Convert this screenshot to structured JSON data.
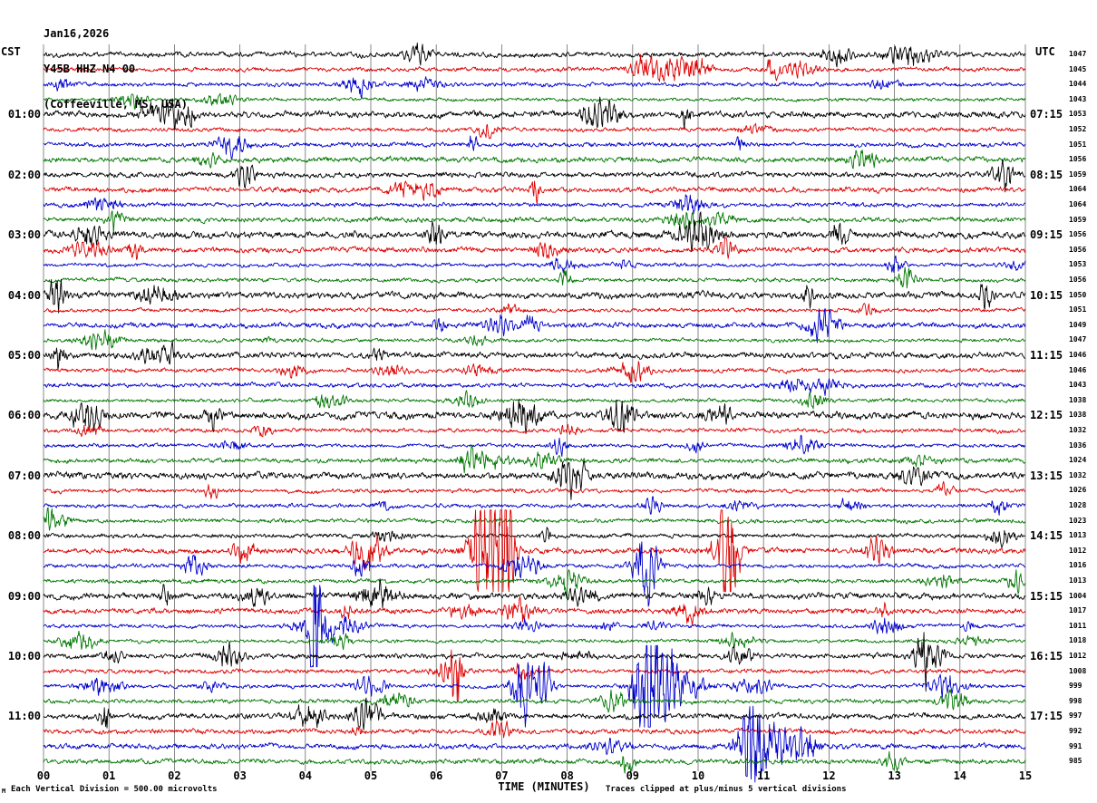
{
  "title": {
    "date": "Jan16,2026",
    "station": "Y45B HHZ N4 00",
    "location": "(Coffeeville, MS, USA)"
  },
  "footer": {
    "scale_note": "Each Vertical Division =  500.00 microvolts",
    "clip_note": "Traces clipped at plus/minus 5 vertical divisions",
    "corner_mark": "M"
  },
  "chart_data": {
    "type": "line",
    "variant": "helicorder-seismogram",
    "station": "Y45B HHZ N4 00",
    "location": "Coffeeville, MS, USA",
    "date": "Jan16,2026",
    "x_axis": {
      "label": "TIME (MINUTES)",
      "ticks": [
        "00",
        "01",
        "02",
        "03",
        "04",
        "05",
        "06",
        "07",
        "08",
        "09",
        "10",
        "11",
        "12",
        "13",
        "14",
        "15"
      ],
      "range_minutes": [
        0,
        15
      ],
      "grid": true
    },
    "left_axis": {
      "header": "CST",
      "labels": [
        {
          "row": 4,
          "text": "01:00"
        },
        {
          "row": 8,
          "text": "02:00"
        },
        {
          "row": 12,
          "text": "03:00"
        },
        {
          "row": 16,
          "text": "04:00"
        },
        {
          "row": 20,
          "text": "05:00"
        },
        {
          "row": 24,
          "text": "06:00"
        },
        {
          "row": 28,
          "text": "07:00"
        },
        {
          "row": 32,
          "text": "08:00"
        },
        {
          "row": 36,
          "text": "09:00"
        },
        {
          "row": 40,
          "text": "10:00"
        },
        {
          "row": 44,
          "text": "11:00"
        }
      ]
    },
    "right_axis": {
      "header": "UTC",
      "labels": [
        {
          "row": 4,
          "text": "07:15"
        },
        {
          "row": 8,
          "text": "08:15"
        },
        {
          "row": 12,
          "text": "09:15"
        },
        {
          "row": 16,
          "text": "10:15"
        },
        {
          "row": 20,
          "text": "11:15"
        },
        {
          "row": 24,
          "text": "12:15"
        },
        {
          "row": 28,
          "text": "13:15"
        },
        {
          "row": 32,
          "text": "14:15"
        },
        {
          "row": 36,
          "text": "15:15"
        },
        {
          "row": 40,
          "text": "16:15"
        },
        {
          "row": 44,
          "text": "17:15"
        }
      ]
    },
    "traces": {
      "count": 48,
      "minutes_per_trace": 15,
      "color_cycle": [
        "#000000",
        "#dd0000",
        "#0000cc",
        "#007700"
      ],
      "right_values": [
        1047,
        1045,
        1044,
        1043,
        1053,
        1052,
        1051,
        1056,
        1059,
        1064,
        1064,
        1059,
        1056,
        1056,
        1053,
        1056,
        1050,
        1051,
        1049,
        1047,
        1046,
        1046,
        1043,
        1038,
        1038,
        1032,
        1036,
        1024,
        1032,
        1026,
        1028,
        1023,
        1013,
        1012,
        1016,
        1013,
        1004,
        1017,
        1011,
        1018,
        1012,
        1008,
        999,
        998,
        997,
        992,
        991,
        985
      ]
    },
    "events": [
      {
        "row": 0,
        "m": 13.2,
        "amp": 10,
        "sigma": 0.25
      },
      {
        "row": 33,
        "m": 6.75,
        "amp": 55,
        "sigma": 0.18
      },
      {
        "row": 33,
        "m": 7.05,
        "amp": 95,
        "sigma": 0.08
      },
      {
        "row": 33,
        "m": 10.45,
        "amp": 70,
        "sigma": 0.12
      },
      {
        "row": 34,
        "m": 9.2,
        "amp": 40,
        "sigma": 0.12
      },
      {
        "row": 38,
        "m": 4.15,
        "amp": 70,
        "sigma": 0.06
      },
      {
        "row": 38,
        "m": 4.35,
        "amp": 14,
        "sigma": 0.3
      },
      {
        "row": 40,
        "m": 13.5,
        "amp": 30,
        "sigma": 0.14
      },
      {
        "row": 41,
        "m": 6.3,
        "amp": 55,
        "sigma": 0.05
      },
      {
        "row": 42,
        "m": 7.3,
        "amp": 45,
        "sigma": 0.1
      },
      {
        "row": 42,
        "m": 7.62,
        "amp": 25,
        "sigma": 0.1
      },
      {
        "row": 42,
        "m": 9.2,
        "amp": 90,
        "sigma": 0.12
      },
      {
        "row": 42,
        "m": 9.55,
        "amp": 32,
        "sigma": 0.28
      },
      {
        "row": 46,
        "m": 10.85,
        "amp": 48,
        "sigma": 0.16
      },
      {
        "row": 46,
        "m": 11.35,
        "amp": 16,
        "sigma": 0.3
      }
    ],
    "notes": {
      "vertical_division_microvolts": 500.0,
      "clip_divisions": 5
    }
  }
}
